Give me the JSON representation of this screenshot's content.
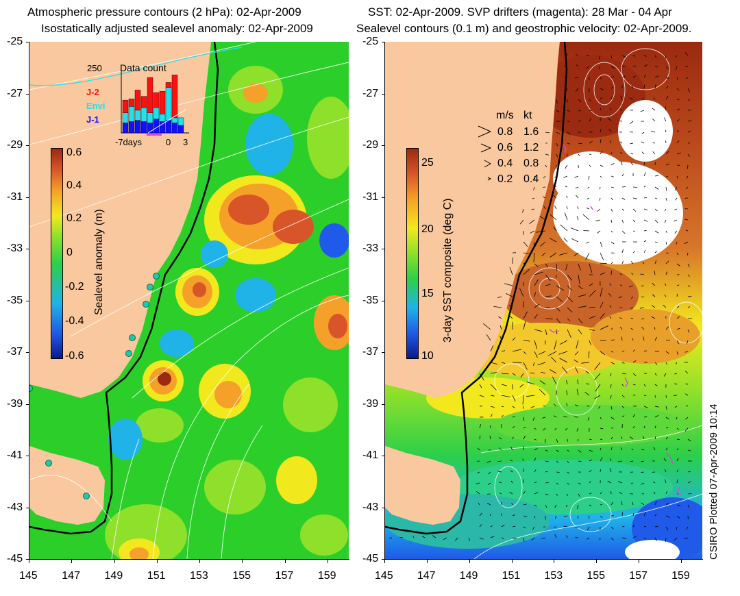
{
  "left_panel": {
    "title_line1": "Atmospheric pressure contours (2 hPa): 02-Apr-2009",
    "title_line2": "Isostatically adjusted sealevel anomaly: 02-Apr-2009",
    "colorbar": {
      "label": "Sealevel anomaly (m)",
      "ticks": [
        "0.6",
        "0.4",
        "0.2",
        "0",
        "-0.2",
        "-0.4",
        "-0.6"
      ],
      "colors": [
        "#0a1a8c",
        "#1f5ae8",
        "#1fb3e8",
        "#2ccf4a",
        "#8ee02a",
        "#f2e81e",
        "#f5a028",
        "#d8552a",
        "#9a2a10"
      ]
    },
    "inset": {
      "title": "Data count",
      "max_label": "250",
      "legend": [
        {
          "name": "J-2",
          "color": "#ff1010"
        },
        {
          "name": "Envi",
          "color": "#22e0ee"
        },
        {
          "name": "J-1",
          "color": "#1010ff"
        }
      ],
      "x_labels": [
        "-7days",
        "0",
        "3"
      ],
      "bars": [
        {
          "j1": 40,
          "envi": 40,
          "j2": 50
        },
        {
          "j1": 45,
          "envi": 60,
          "j2": 30
        },
        {
          "j1": 50,
          "envi": 40,
          "j2": 80
        },
        {
          "j1": 45,
          "envi": 55,
          "j2": 45
        },
        {
          "j1": 40,
          "envi": 40,
          "j2": 140
        },
        {
          "j1": 55,
          "envi": 45,
          "j2": 60
        },
        {
          "j1": 45,
          "envi": 30,
          "j2": 90
        },
        {
          "j1": 50,
          "envi": 130,
          "j2": 20
        },
        {
          "j1": 40,
          "envi": 20,
          "j2": 170
        },
        {
          "j1": 30,
          "envi": 30,
          "j2": 0
        }
      ]
    }
  },
  "right_panel": {
    "title_line1": "SST: 02-Apr-2009. SVP drifters (magenta): 28 Mar - 04 Apr",
    "title_line2": "Sealevel contours (0.1 m) and geostrophic velocity: 02-Apr-2009.",
    "colorbar": {
      "label": "3-day SST composite (deg C)",
      "ticks": [
        "25",
        "20",
        "15",
        "10"
      ],
      "colors": [
        "#0a1a8c",
        "#1f5ae8",
        "#1fb3e8",
        "#2ccf4a",
        "#8ee02a",
        "#f2e81e",
        "#f5a028",
        "#d8552a",
        "#9a2a10"
      ]
    },
    "velocity_legend": {
      "header_ms": "m/s",
      "header_kt": "kt",
      "rows": [
        {
          "ms": "0.8",
          "kt": "1.6"
        },
        {
          "ms": "0.6",
          "kt": "1.2"
        },
        {
          "ms": "0.4",
          "kt": "0.8"
        },
        {
          "ms": "0.2",
          "kt": "0.4"
        }
      ]
    }
  },
  "axes": {
    "lat_ticks": [
      "-25",
      "-27",
      "-29",
      "-31",
      "-33",
      "-35",
      "-37",
      "-39",
      "-41",
      "-43",
      "-45"
    ],
    "lon_ticks": [
      "145",
      "147",
      "149",
      "151",
      "153",
      "155",
      "157",
      "159"
    ],
    "lat_range": [
      -45,
      -25
    ],
    "lon_range": [
      145,
      160
    ]
  },
  "credit": "CSIRO Plotted 07-Apr-2009 10:14",
  "colors": {
    "land": "#f9c89e",
    "ocean_green": "#2ccf2a",
    "coast": "#000000",
    "tide_gauge": "#22c8a8"
  }
}
